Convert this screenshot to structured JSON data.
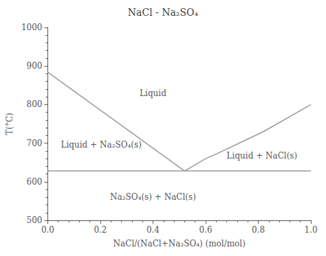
{
  "chart_data": {
    "type": "line",
    "title": "NaCl - Na₂SO₄",
    "xlabel": "NaCl/(NaCl+Na₂SO₄) (mol/mol)",
    "ylabel": "T(°C)",
    "xlim": [
      0,
      1
    ],
    "ylim": [
      500,
      1000
    ],
    "xticks": [
      {
        "value": 0,
        "label": "0.0"
      },
      0.2,
      0.4,
      0.6,
      0.8,
      {
        "value": 1.0,
        "label": "1.0"
      }
    ],
    "yticks": [
      500,
      600,
      700,
      800,
      900,
      1000
    ],
    "color": "#999999",
    "series": [
      {
        "x": [
          0.0,
          0.52
        ],
        "values": [
          884,
          628
        ]
      },
      {
        "x": [
          0.52,
          0.6,
          0.65,
          0.82,
          1.0
        ],
        "values": [
          628,
          660,
          675,
          730,
          800
        ]
      }
    ],
    "hline": 628,
    "annotations": [
      {
        "text": "Liquid",
        "x": 0.4,
        "y": 830,
        "align": "center"
      },
      {
        "text": "Liquid + Na₂SO₄(s)",
        "x": 0.05,
        "y": 695,
        "align": "left"
      },
      {
        "text": "Liquid + NaCl(s)",
        "x": 0.68,
        "y": 668,
        "align": "left"
      },
      {
        "text": "Na₂SO₄(s) + NaCl(s)",
        "x": 0.4,
        "y": 560,
        "align": "center"
      }
    ],
    "grid": false
  }
}
